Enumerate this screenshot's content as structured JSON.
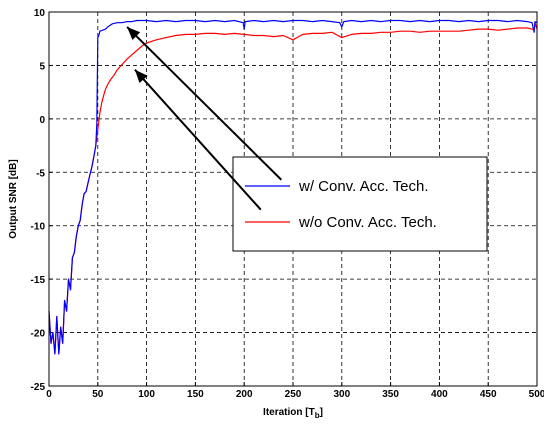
{
  "chart_data": {
    "type": "line",
    "xlabel": "Iteration [T",
    "xlabel_sub": "b",
    "xlabel_close": "]",
    "ylabel": "Output SNR [dB]",
    "xlim": [
      0,
      500
    ],
    "ylim": [
      -25,
      10
    ],
    "xticks": [
      0,
      50,
      100,
      150,
      200,
      250,
      300,
      350,
      400,
      450,
      500
    ],
    "yticks": [
      -25,
      -20,
      -15,
      -10,
      -5,
      0,
      5,
      10
    ],
    "grid": true,
    "grid_style": "dashed",
    "legend_position": "center-right",
    "series": [
      {
        "name": "w/ Conv. Acc. Tech.",
        "color": "#0000ff",
        "x": [
          0,
          2,
          4,
          6,
          8,
          10,
          12,
          14,
          16,
          18,
          20,
          22,
          24,
          26,
          28,
          30,
          32,
          34,
          36,
          38,
          40,
          42,
          44,
          46,
          48,
          49,
          50,
          51,
          52,
          55,
          58,
          60,
          65,
          70,
          75,
          80,
          85,
          90,
          95,
          100,
          110,
          120,
          130,
          140,
          150,
          160,
          170,
          180,
          190,
          199,
          200,
          201,
          210,
          220,
          230,
          240,
          250,
          260,
          270,
          280,
          290,
          298,
          300,
          302,
          310,
          320,
          330,
          340,
          350,
          360,
          370,
          380,
          390,
          400,
          410,
          420,
          430,
          440,
          450,
          460,
          470,
          480,
          490,
          495,
          497,
          498,
          500
        ],
        "y": [
          -18,
          -21,
          -20,
          -22,
          -18.5,
          -22,
          -19.5,
          -21,
          -17,
          -18,
          -15,
          -16,
          -13,
          -12.5,
          -11,
          -10,
          -9.5,
          -8,
          -7,
          -6.8,
          -6,
          -5.2,
          -4.5,
          -3.5,
          -2.5,
          -0.5,
          7.6,
          7.8,
          8.2,
          8.3,
          8.4,
          8.6,
          8.9,
          9.0,
          9.0,
          9.1,
          9.1,
          9.2,
          9.2,
          9.2,
          9.1,
          9.2,
          9.1,
          9.2,
          9.2,
          9.1,
          9.2,
          9.1,
          9.2,
          9.0,
          8.4,
          9.1,
          9.2,
          9.1,
          9.2,
          9.1,
          9.2,
          9.2,
          9.1,
          9.2,
          9.1,
          9.0,
          8.6,
          9.1,
          9.2,
          9.1,
          9.2,
          9.1,
          9.2,
          9.2,
          9.1,
          9.2,
          9.1,
          9.2,
          9.2,
          9.1,
          9.2,
          9.1,
          9.2,
          9.2,
          9.1,
          9.2,
          9.1,
          9.0,
          8.1,
          9.1,
          9.0
        ]
      },
      {
        "name": "w/o Conv. Acc. Tech.",
        "color": "#ff0000",
        "x": [
          0,
          2,
          4,
          6,
          8,
          10,
          12,
          14,
          16,
          18,
          20,
          22,
          24,
          26,
          28,
          30,
          32,
          34,
          36,
          38,
          40,
          42,
          44,
          46,
          48,
          50,
          52,
          54,
          56,
          58,
          60,
          62,
          64,
          66,
          68,
          70,
          72,
          74,
          76,
          78,
          80,
          85,
          90,
          95,
          100,
          110,
          120,
          130,
          140,
          150,
          160,
          170,
          180,
          190,
          200,
          210,
          220,
          230,
          240,
          250,
          260,
          270,
          280,
          290,
          300,
          310,
          320,
          330,
          340,
          350,
          360,
          370,
          380,
          390,
          400,
          410,
          420,
          430,
          440,
          450,
          460,
          470,
          480,
          490,
          495,
          497,
          498,
          500
        ],
        "y": [
          -18,
          -21,
          -20,
          -22,
          -18.5,
          -22,
          -19.5,
          -21,
          -17,
          -18,
          -15,
          -16,
          -13,
          -12.5,
          -11,
          -10,
          -9.5,
          -8,
          -7,
          -6.8,
          -6,
          -5.2,
          -4.5,
          -3.5,
          -2.5,
          -1.0,
          0.5,
          1.5,
          2.2,
          2.8,
          3.2,
          3.5,
          3.8,
          4.0,
          4.3,
          4.6,
          4.8,
          5.0,
          5.2,
          5.4,
          5.6,
          6.0,
          6.4,
          6.8,
          7.1,
          7.4,
          7.6,
          7.8,
          7.9,
          7.9,
          8.0,
          8.0,
          7.9,
          8.0,
          7.9,
          7.8,
          7.8,
          7.7,
          7.8,
          7.4,
          7.9,
          8.0,
          8.0,
          8.1,
          7.6,
          7.9,
          8.0,
          8.0,
          8.1,
          8.1,
          8.2,
          8.2,
          8.1,
          8.2,
          8.2,
          8.2,
          8.2,
          8.3,
          8.4,
          8.4,
          8.3,
          8.4,
          8.5,
          8.5,
          8.4,
          8.3,
          9.0,
          8.4
        ]
      }
    ],
    "annotations": [
      {
        "type": "arrow",
        "from": [
          238,
          -5.7
        ],
        "to": [
          80,
          8.6
        ]
      },
      {
        "type": "arrow",
        "from": [
          217,
          -8.5
        ],
        "to": [
          88,
          4.6
        ]
      }
    ]
  }
}
